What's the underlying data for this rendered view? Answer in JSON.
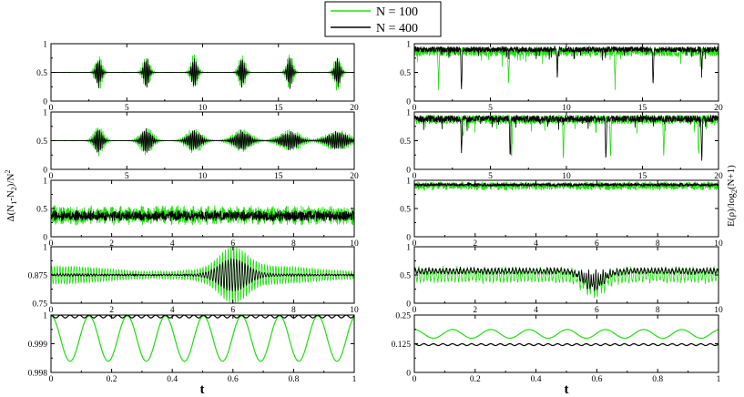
{
  "legend": {
    "placement": "top-center",
    "items": [
      {
        "label": "N = 100",
        "color": "#22dd11"
      },
      {
        "label": "N = 400",
        "color": "#000000"
      }
    ]
  },
  "left_ylabel": "Δ(N1-N2)/N^2",
  "right_ylabel": "E(ρ)/log2(N+1)",
  "chart_data": [
    {
      "type": "line",
      "id": "L1",
      "column": "left",
      "row": 1,
      "xlim": [
        0,
        20
      ],
      "ylim": [
        0,
        1
      ],
      "xticks": [
        0,
        5,
        10,
        15,
        20
      ],
      "yticks": [
        0,
        0.5,
        1
      ],
      "ytick_labels": [
        "0",
        "0.5",
        "1"
      ],
      "xlabel": "",
      "grid": false,
      "series": [
        {
          "name": "N = 100",
          "color": "#22dd11",
          "behavior": "revivals",
          "baseline": 0.5,
          "amplitude": 0.34,
          "period": 3.15,
          "width": 0.22
        },
        {
          "name": "N = 400",
          "color": "#000000",
          "behavior": "revivals",
          "baseline": 0.5,
          "amplitude": 0.3,
          "period": 3.15,
          "width": 0.16
        }
      ]
    },
    {
      "type": "line",
      "id": "L2",
      "column": "left",
      "row": 2,
      "xlim": [
        0,
        20
      ],
      "ylim": [
        0,
        1
      ],
      "xticks": [
        0,
        5,
        10,
        15,
        20
      ],
      "yticks": [
        0,
        0.5,
        1
      ],
      "ytick_labels": [
        "0",
        "0.5",
        "1"
      ],
      "xlabel": "",
      "grid": false,
      "series": [
        {
          "name": "N = 100",
          "color": "#22dd11",
          "behavior": "spreading-revivals",
          "baseline": 0.5,
          "amplitude": 0.34,
          "period": 3.15,
          "width": 0.22
        },
        {
          "name": "N = 400",
          "color": "#000000",
          "behavior": "spreading-revivals",
          "baseline": 0.5,
          "amplitude": 0.3,
          "period": 3.15,
          "width": 0.16
        }
      ]
    },
    {
      "type": "line",
      "id": "L3",
      "column": "left",
      "row": 3,
      "xlim": [
        0,
        10
      ],
      "ylim": [
        0,
        1
      ],
      "xticks": [
        0,
        2,
        4,
        6,
        8,
        10
      ],
      "yticks": [
        0,
        0.5,
        1
      ],
      "ytick_labels": [
        "0",
        "0.5",
        "1"
      ],
      "xlabel": "",
      "grid": false,
      "series": [
        {
          "name": "N = 100",
          "color": "#22dd11",
          "behavior": "noisy",
          "baseline": 0.38,
          "amplitude": 0.18
        },
        {
          "name": "N = 400",
          "color": "#000000",
          "behavior": "noisy",
          "baseline": 0.37,
          "amplitude": 0.1
        }
      ]
    },
    {
      "type": "line",
      "id": "L4",
      "column": "left",
      "row": 4,
      "xlim": [
        0,
        10
      ],
      "ylim": [
        0.75,
        1
      ],
      "xticks": [
        0,
        2,
        4,
        6,
        8,
        10
      ],
      "yticks": [
        0.75,
        0.875,
        1
      ],
      "ytick_labels": [
        "0.75",
        "0.875",
        "1"
      ],
      "xlabel": "",
      "grid": false,
      "series": [
        {
          "name": "N = 100",
          "color": "#22dd11",
          "behavior": "beating",
          "baseline": 0.875,
          "amplitude": 0.04,
          "burst_center": 6.0,
          "burst_amplitude": 0.09
        },
        {
          "name": "N = 400",
          "color": "#000000",
          "behavior": "beating",
          "baseline": 0.875,
          "amplitude": 0.004,
          "burst_center": 6.0,
          "burst_amplitude": 0.07
        }
      ]
    },
    {
      "type": "line",
      "id": "L5",
      "column": "left",
      "row": 5,
      "xlim": [
        0,
        1
      ],
      "ylim": [
        0.998,
        1
      ],
      "xticks": [
        0,
        0.2,
        0.4,
        0.6,
        0.8,
        1
      ],
      "xtick_labels": [
        "0",
        "0.2",
        "0.4",
        "0.6",
        "0.8",
        "1"
      ],
      "yticks": [
        0.998,
        0.999,
        1
      ],
      "ytick_labels": [
        "0.998",
        "0.999",
        "1"
      ],
      "xlabel": "t",
      "grid": false,
      "series": [
        {
          "name": "N = 100",
          "color": "#22dd11",
          "behavior": "sinusoid",
          "baseline": 0.99918,
          "amplitude": 0.00079,
          "period": 0.1257,
          "phase": 0
        },
        {
          "name": "N = 400",
          "color": "#000000",
          "behavior": "sinusoid",
          "baseline": 0.99995,
          "amplitude": 5e-05,
          "period": 0.0314,
          "phase": 0
        }
      ]
    },
    {
      "type": "line",
      "id": "R1",
      "column": "right",
      "row": 1,
      "xlim": [
        0,
        20
      ],
      "ylim": [
        0,
        1
      ],
      "xticks": [
        0,
        5,
        10,
        15,
        20
      ],
      "yticks": [
        0,
        0.5,
        1
      ],
      "ytick_labels": [
        "0",
        "0.5",
        "1"
      ],
      "xlabel": "",
      "grid": false,
      "series": [
        {
          "name": "N = 100",
          "color": "#22dd11",
          "behavior": "dips",
          "baseline": 0.86,
          "amplitude": 0.08,
          "dips": [
            [
              1.6,
              0.6
            ],
            [
              6.2,
              0.5
            ],
            [
              9.4,
              0.2
            ],
            [
              13.2,
              0.5
            ],
            [
              18.8,
              0.2
            ]
          ]
        },
        {
          "name": "N = 400",
          "color": "#000000",
          "behavior": "dips",
          "baseline": 0.9,
          "amplitude": 0.05,
          "dips": [
            [
              3.1,
              0.7
            ],
            [
              9.4,
              0.45
            ],
            [
              15.7,
              0.6
            ],
            [
              18.9,
              0.35
            ]
          ]
        }
      ]
    },
    {
      "type": "line",
      "id": "R2",
      "column": "right",
      "row": 2,
      "xlim": [
        0,
        20
      ],
      "ylim": [
        0,
        1
      ],
      "xticks": [
        0,
        5,
        10,
        15,
        20
      ],
      "yticks": [
        0,
        0.5,
        1
      ],
      "ytick_labels": [
        "0",
        "0.5",
        "1"
      ],
      "xlabel": "",
      "grid": false,
      "series": [
        {
          "name": "N = 100",
          "color": "#22dd11",
          "behavior": "dips",
          "baseline": 0.87,
          "amplitude": 0.08,
          "dips": [
            [
              3.2,
              0.35
            ],
            [
              6.4,
              0.6
            ],
            [
              9.8,
              0.62
            ],
            [
              12.9,
              0.65
            ],
            [
              16.4,
              0.6
            ],
            [
              18.7,
              0.6
            ]
          ]
        },
        {
          "name": "N = 400",
          "color": "#000000",
          "behavior": "dips",
          "baseline": 0.88,
          "amplitude": 0.06,
          "dips": [
            [
              3.1,
              0.55
            ],
            [
              6.3,
              0.65
            ],
            [
              12.6,
              0.7
            ],
            [
              18.9,
              0.7
            ]
          ]
        }
      ]
    },
    {
      "type": "line",
      "id": "R3",
      "column": "right",
      "row": 3,
      "xlim": [
        0,
        10
      ],
      "ylim": [
        0,
        1
      ],
      "xticks": [
        0,
        2,
        4,
        6,
        8,
        10
      ],
      "yticks": [
        0,
        0.5,
        1
      ],
      "ytick_labels": [
        "0",
        "0.5",
        "1"
      ],
      "xlabel": "",
      "grid": false,
      "series": [
        {
          "name": "N = 100",
          "color": "#22dd11",
          "behavior": "noisy",
          "baseline": 0.9,
          "amplitude": 0.08
        },
        {
          "name": "N = 400",
          "color": "#000000",
          "behavior": "noisy",
          "baseline": 0.92,
          "amplitude": 0.03
        }
      ]
    },
    {
      "type": "line",
      "id": "R4",
      "column": "right",
      "row": 4,
      "xlim": [
        0,
        10
      ],
      "ylim": [
        0,
        1
      ],
      "xticks": [
        0,
        2,
        4,
        6,
        8,
        10
      ],
      "yticks": [
        0,
        0.5,
        1
      ],
      "ytick_labels": [
        "0",
        "0.5",
        "1"
      ],
      "xlabel": "",
      "grid": false,
      "series": [
        {
          "name": "N = 100",
          "color": "#22dd11",
          "behavior": "oscillating-dip",
          "baseline": 0.5,
          "amplitude": 0.14,
          "burst_center": 5.9,
          "burst_depth": 0.3
        },
        {
          "name": "N = 400",
          "color": "#000000",
          "behavior": "oscillating-dip",
          "baseline": 0.57,
          "amplitude": 0.05,
          "burst_center": 5.9,
          "burst_depth": 0.32
        }
      ]
    },
    {
      "type": "line",
      "id": "R5",
      "column": "right",
      "row": 5,
      "xlim": [
        0,
        1
      ],
      "ylim": [
        0,
        0.25
      ],
      "xticks": [
        0,
        0.2,
        0.4,
        0.6,
        0.8,
        1
      ],
      "xtick_labels": [
        "0",
        "0.2",
        "0.4",
        "0.6",
        "0.8",
        "1"
      ],
      "yticks": [
        0,
        0.125,
        0.25
      ],
      "ytick_labels": [
        "0",
        "0.125",
        "0.25"
      ],
      "xlabel": "t",
      "grid": false,
      "series": [
        {
          "name": "N = 100",
          "color": "#22dd11",
          "behavior": "sinusoid",
          "baseline": 0.168,
          "amplitude": 0.019,
          "period": 0.1257,
          "phase": 0
        },
        {
          "name": "N = 400",
          "color": "#000000",
          "behavior": "sinusoid",
          "baseline": 0.121,
          "amplitude": 0.004,
          "period": 0.0314,
          "phase": 0
        }
      ]
    }
  ]
}
